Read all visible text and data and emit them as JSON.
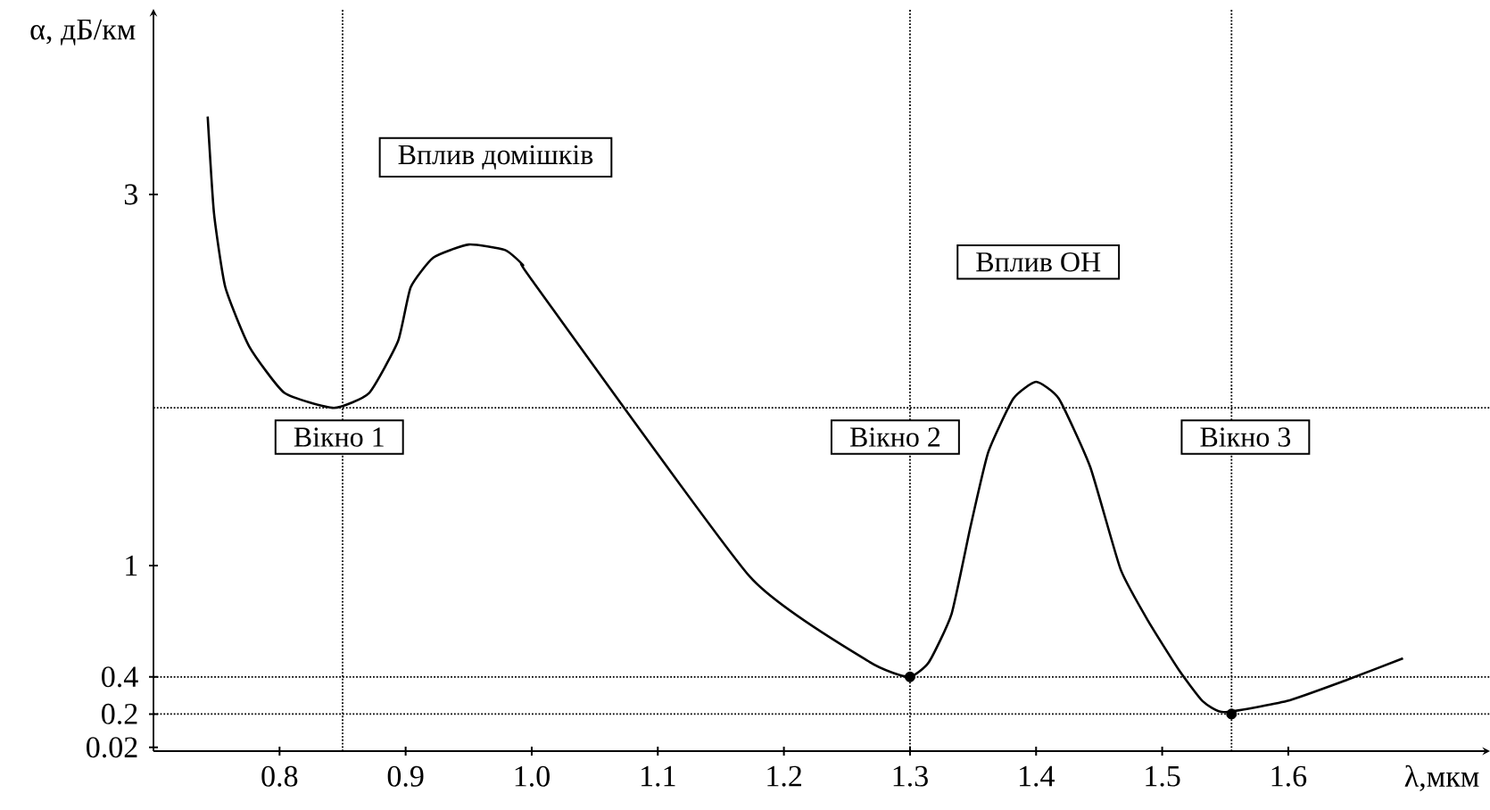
{
  "chart_data": {
    "type": "line",
    "xlabel": "λ,мкм",
    "ylabel": "α, дБ/км",
    "xlim": [
      0.7,
      1.76
    ],
    "ylim": [
      0,
      4
    ],
    "xticks": [
      {
        "value": 0.8,
        "label": "0.8"
      },
      {
        "value": 0.9,
        "label": "0.9"
      },
      {
        "value": 1.0,
        "label": "1.0"
      },
      {
        "value": 1.1,
        "label": "1.1"
      },
      {
        "value": 1.2,
        "label": "1.2"
      },
      {
        "value": 1.3,
        "label": "1.3"
      },
      {
        "value": 1.4,
        "label": "1.4"
      },
      {
        "value": 1.5,
        "label": "1.5"
      },
      {
        "value": 1.6,
        "label": "1.6"
      }
    ],
    "yticks": [
      0.02,
      0.2,
      0.4,
      1,
      3
    ],
    "marker": "none",
    "line_style": "solid",
    "series": [
      {
        "color": "#000000",
        "x": [
          0.743,
          0.748,
          0.757,
          0.776,
          0.804,
          0.843,
          0.871,
          0.894,
          0.904,
          0.922,
          0.95,
          0.979,
          0.993,
          1.0,
          1.173,
          1.268,
          1.299,
          1.315,
          1.333,
          1.348,
          1.362,
          1.382,
          1.4,
          1.418,
          1.443,
          1.467,
          1.489,
          1.513,
          1.532,
          1.549,
          1.599,
          1.645,
          1.691
        ],
        "values": [
          3.42,
          2.9,
          2.5,
          2.18,
          1.93,
          1.85,
          1.93,
          2.21,
          2.5,
          2.66,
          2.73,
          2.7,
          2.62,
          2.54,
          0.94,
          0.48,
          0.4,
          0.48,
          0.74,
          1.21,
          1.61,
          1.9,
          1.99,
          1.9,
          1.53,
          0.98,
          0.7,
          0.44,
          0.27,
          0.21,
          0.27,
          0.38,
          0.5
        ]
      },
      {
        "type": "scatter",
        "marker": "circle",
        "color": "#000000",
        "x": [
          1.3,
          1.555
        ],
        "values": [
          0.4,
          0.2
        ]
      }
    ],
    "ref_lines": [
      {
        "axis": "x",
        "value": 0.85,
        "color": "#000000",
        "line_style": "dotted"
      },
      {
        "axis": "x",
        "value": 1.3,
        "color": "#000000",
        "line_style": "dotted"
      },
      {
        "axis": "x",
        "value": 1.555,
        "color": "#000000",
        "line_style": "dotted"
      },
      {
        "axis": "y",
        "value": 1.85,
        "color": "#000000",
        "line_style": "dotted"
      },
      {
        "axis": "y",
        "value": 0.4,
        "color": "#000000",
        "line_style": "dotted"
      },
      {
        "axis": "y",
        "value": 0.2,
        "color": "#000000",
        "line_style": "dotted"
      }
    ],
    "annotations": [
      "Вплив домішків",
      "Вікно 1",
      "Вікно 2",
      "Вікно 3",
      "Вплив ОН"
    ]
  }
}
